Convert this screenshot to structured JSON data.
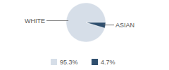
{
  "chart_data": {
    "type": "pie",
    "categories": [
      "WHITE",
      "ASIAN"
    ],
    "values": [
      95.3,
      4.7
    ],
    "value_labels": [
      "95.3%",
      "4.7%"
    ],
    "colors": [
      "#d6dee8",
      "#2f4f6e"
    ],
    "legend": "bottom"
  }
}
